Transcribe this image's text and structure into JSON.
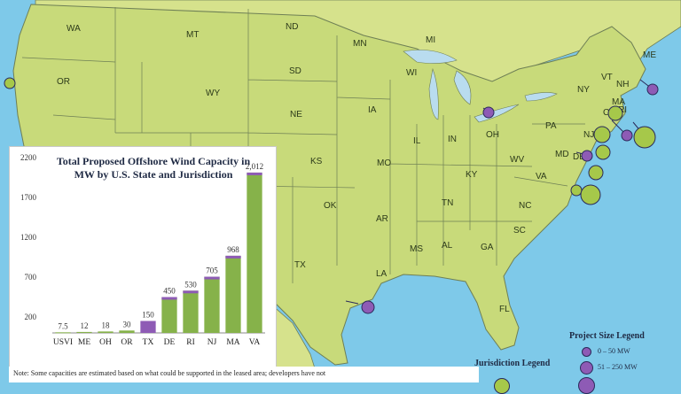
{
  "states": [
    "WA",
    "MT",
    "ND",
    "MN",
    "MI",
    "ME",
    "OR",
    "WY",
    "SD",
    "WI",
    "VT",
    "NH",
    "NY",
    "MA",
    "CT",
    "RI",
    "NE",
    "IA",
    "PA",
    "OH",
    "NJ",
    "IL",
    "IN",
    "KS",
    "MO",
    "KY",
    "WV",
    "MD",
    "DE",
    "VA",
    "OK",
    "AR",
    "TN",
    "NC",
    "AL",
    "MS",
    "SC",
    "GA",
    "TX",
    "LA",
    "FL"
  ],
  "colors": {
    "land": "#c8da7a",
    "border": "#6e7f55",
    "water": "#7ec9e9",
    "lake": "#b9dcef",
    "bar_green": "#86b24a",
    "bar_purple": "#8e5bb5",
    "bubble_green": "#a6c84a",
    "bubble_purple": "#8e5bb5"
  },
  "chart_data": {
    "type": "bar",
    "title": "Total Proposed Offshore Wind Capacity in MW by U.S. State and Jurisdiction",
    "title_lines": [
      "Total Proposed Offshore Wind Capacity in",
      "MW by U.S. State and Jurisdiction"
    ],
    "categories": [
      "USVI",
      "ME",
      "OH",
      "OR",
      "TX",
      "DE",
      "RI",
      "NJ",
      "MA",
      "VA"
    ],
    "values": [
      7.5,
      12,
      18,
      30,
      150,
      450,
      530,
      705,
      968,
      2012
    ],
    "value_labels": [
      "7.5",
      "12",
      "18",
      "30",
      "150",
      "450",
      "530",
      "705",
      "968",
      "2,012"
    ],
    "bar_colors": [
      "green",
      "green",
      "green",
      "green",
      "purple",
      "green",
      "green",
      "green",
      "green",
      "green"
    ],
    "ylim": [
      0,
      2200
    ],
    "yticks": [
      200,
      700,
      1200,
      1700,
      2200
    ],
    "xlabel": "",
    "ylabel": ""
  },
  "note": "Note: Some capacities are estimated based on what could be supported in the leased area; developers have not",
  "legend": {
    "size_title": "Project Size Legend",
    "size_items": [
      "0 – 50 MW",
      "51 – 250 MW"
    ],
    "jurisdiction_title": "Jurisdiction Legend"
  }
}
